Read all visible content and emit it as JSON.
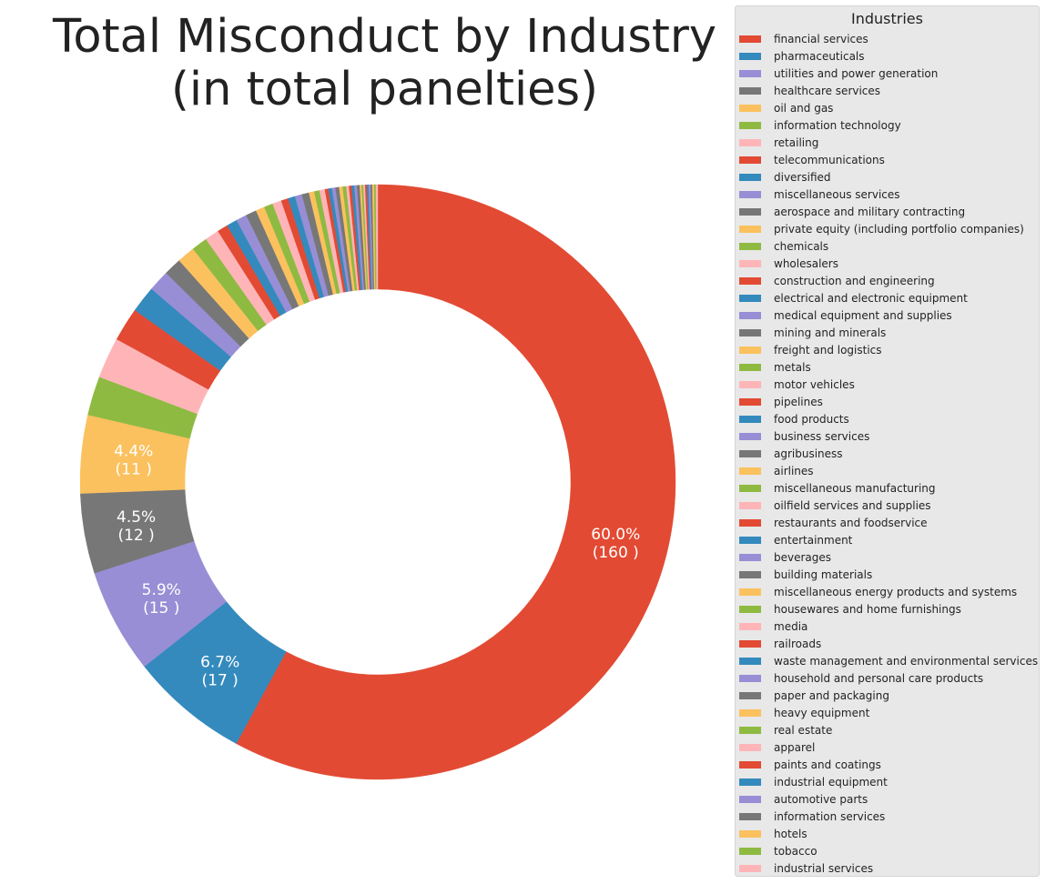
{
  "chart_data": {
    "type": "pie",
    "style": "donut",
    "title": [
      "Total Misconduct by Industry",
      "(in total panelties)"
    ],
    "legend_title": "Industries",
    "legend_position": "right",
    "start_angle_deg": 90,
    "direction": "clockwise",
    "categories": [
      "financial services",
      "pharmaceuticals",
      "utilities and power generation",
      "healthcare services",
      "oil and gas",
      "information technology",
      "retailing",
      "telecommunications",
      "diversified",
      "miscellaneous services",
      "aerospace and military contracting",
      "private equity (including portfolio companies)",
      "chemicals",
      "wholesalers",
      "construction and engineering",
      "electrical and electronic equipment",
      "medical equipment and supplies",
      "mining and minerals",
      "freight and logistics",
      "metals",
      "motor vehicles",
      "pipelines",
      "food products",
      "business services",
      "agribusiness",
      "airlines",
      "miscellaneous manufacturing",
      "oilfield services and supplies",
      "restaurants and foodservice",
      "entertainment",
      "beverages",
      "building materials",
      "miscellaneous energy products and systems",
      "housewares and home furnishings",
      "media",
      "railroads",
      "waste management and environmental services",
      "household and personal care products",
      "paper and packaging",
      "heavy equipment",
      "real estate",
      "apparel",
      "paints and coatings",
      "industrial equipment",
      "automotive parts",
      "information services",
      "hotels",
      "tobacco",
      "industrial services"
    ],
    "percentages": [
      60.0,
      6.7,
      5.9,
      4.5,
      4.4,
      2.2,
      2.3,
      1.9,
      1.5,
      1.2,
      1.0,
      1.0,
      0.9,
      0.8,
      0.6,
      0.6,
      0.6,
      0.6,
      0.5,
      0.5,
      0.5,
      0.4,
      0.4,
      0.4,
      0.4,
      0.3,
      0.3,
      0.3,
      0.2,
      0.2,
      0.2,
      0.2,
      0.2,
      0.2,
      0.15,
      0.15,
      0.15,
      0.15,
      0.15,
      0.1,
      0.1,
      0.1,
      0.1,
      0.1,
      0.1,
      0.1,
      0.1,
      0.1,
      0.1
    ],
    "data_labels": [
      {
        "index": 0,
        "pct": "60.0%",
        "value": "(160 )"
      },
      {
        "index": 1,
        "pct": "6.7%",
        "value": "(17 )"
      },
      {
        "index": 2,
        "pct": "5.9%",
        "value": "(15 )"
      },
      {
        "index": 3,
        "pct": "4.5%",
        "value": "(12 )"
      },
      {
        "index": 4,
        "pct": "4.4%",
        "value": "(11 )"
      }
    ],
    "colors": [
      "#E24A33",
      "#348ABD",
      "#988ED5",
      "#777777",
      "#FBC15E",
      "#8EBA42",
      "#FFB5B8"
    ]
  }
}
